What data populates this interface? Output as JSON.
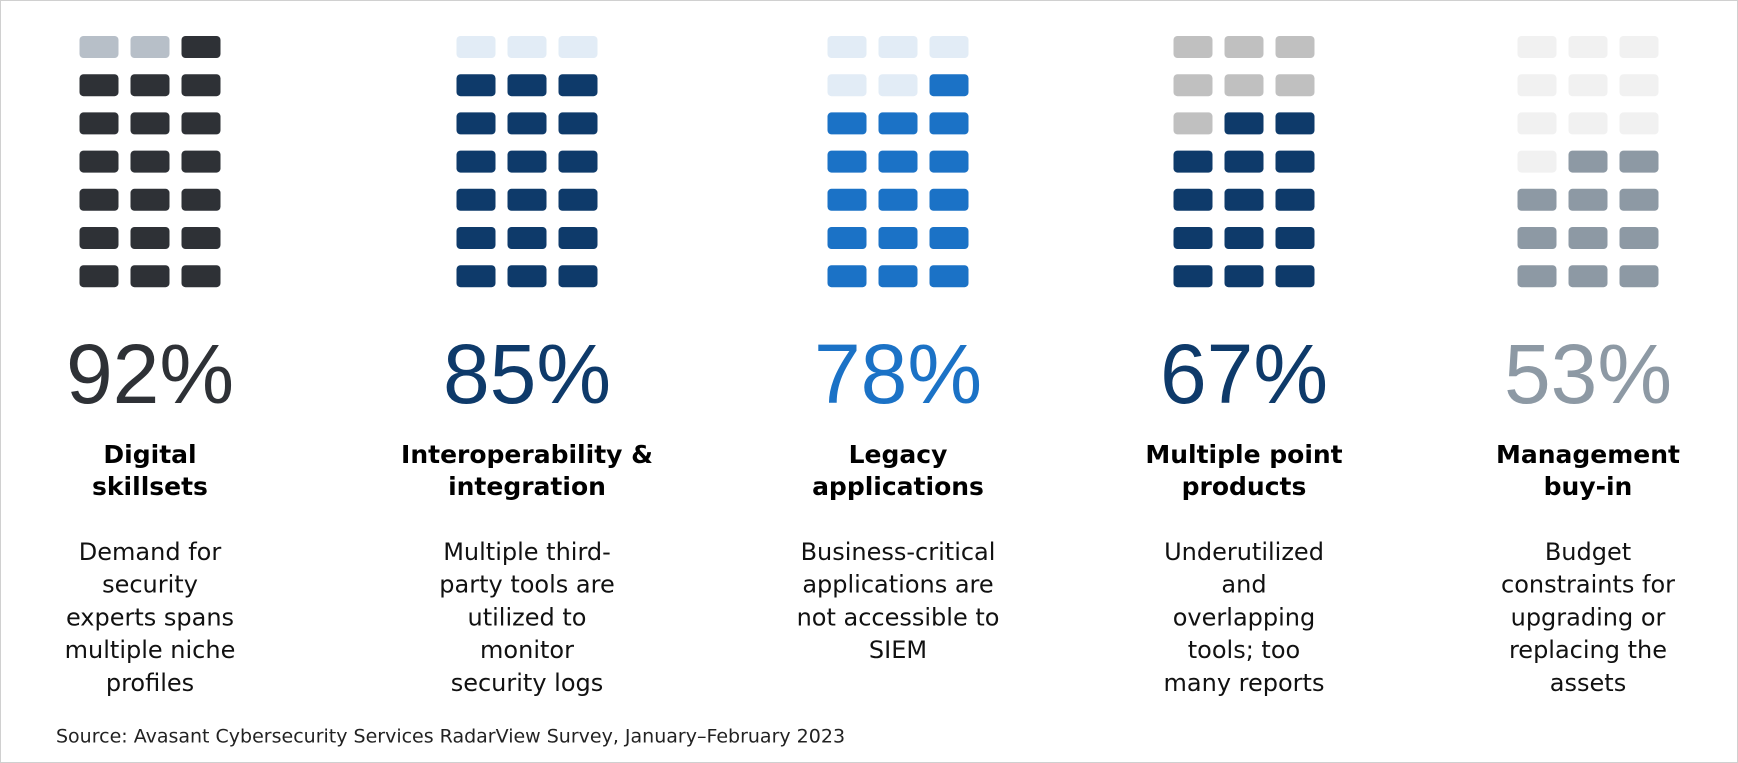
{
  "chart_data": {
    "type": "waffle",
    "categories": [
      [
        "Digital",
        "skillsets"
      ],
      [
        "Interoperability &",
        "integration"
      ],
      [
        "Legacy",
        "applications"
      ],
      [
        "Multiple point",
        "products"
      ],
      [
        "Management",
        "buy-in"
      ]
    ],
    "values": [
      92,
      85,
      78,
      67,
      53
    ],
    "value_labels": [
      "92%",
      "85%",
      "78%",
      "67%",
      "53%"
    ],
    "descriptions": [
      [
        "Demand for",
        "security",
        "experts spans",
        "multiple niche",
        "profiles"
      ],
      [
        "Multiple third-",
        "party tools are",
        "utilized to",
        "monitor",
        "security logs"
      ],
      [
        "Business-critical",
        "applications are",
        "not accessible to",
        "SIEM"
      ],
      [
        "Underutilized",
        "and",
        "overlapping",
        "tools; too",
        "many reports"
      ],
      [
        "Budget",
        "constraints for",
        "upgrading or",
        "replacing the",
        "assets"
      ]
    ],
    "colors": [
      "#2e3136",
      "#0e3a6a",
      "#1b72c6",
      "#0e3a6a",
      "#8d99a4"
    ],
    "empty_colors": [
      "#b7bfc8",
      "#e2ecf6",
      "#e2ecf6",
      "#c0c0c0",
      "#f1f1f1"
    ],
    "source": "Source: Avasant Cybersecurity Services RadarView Survey, January–February 2023"
  }
}
